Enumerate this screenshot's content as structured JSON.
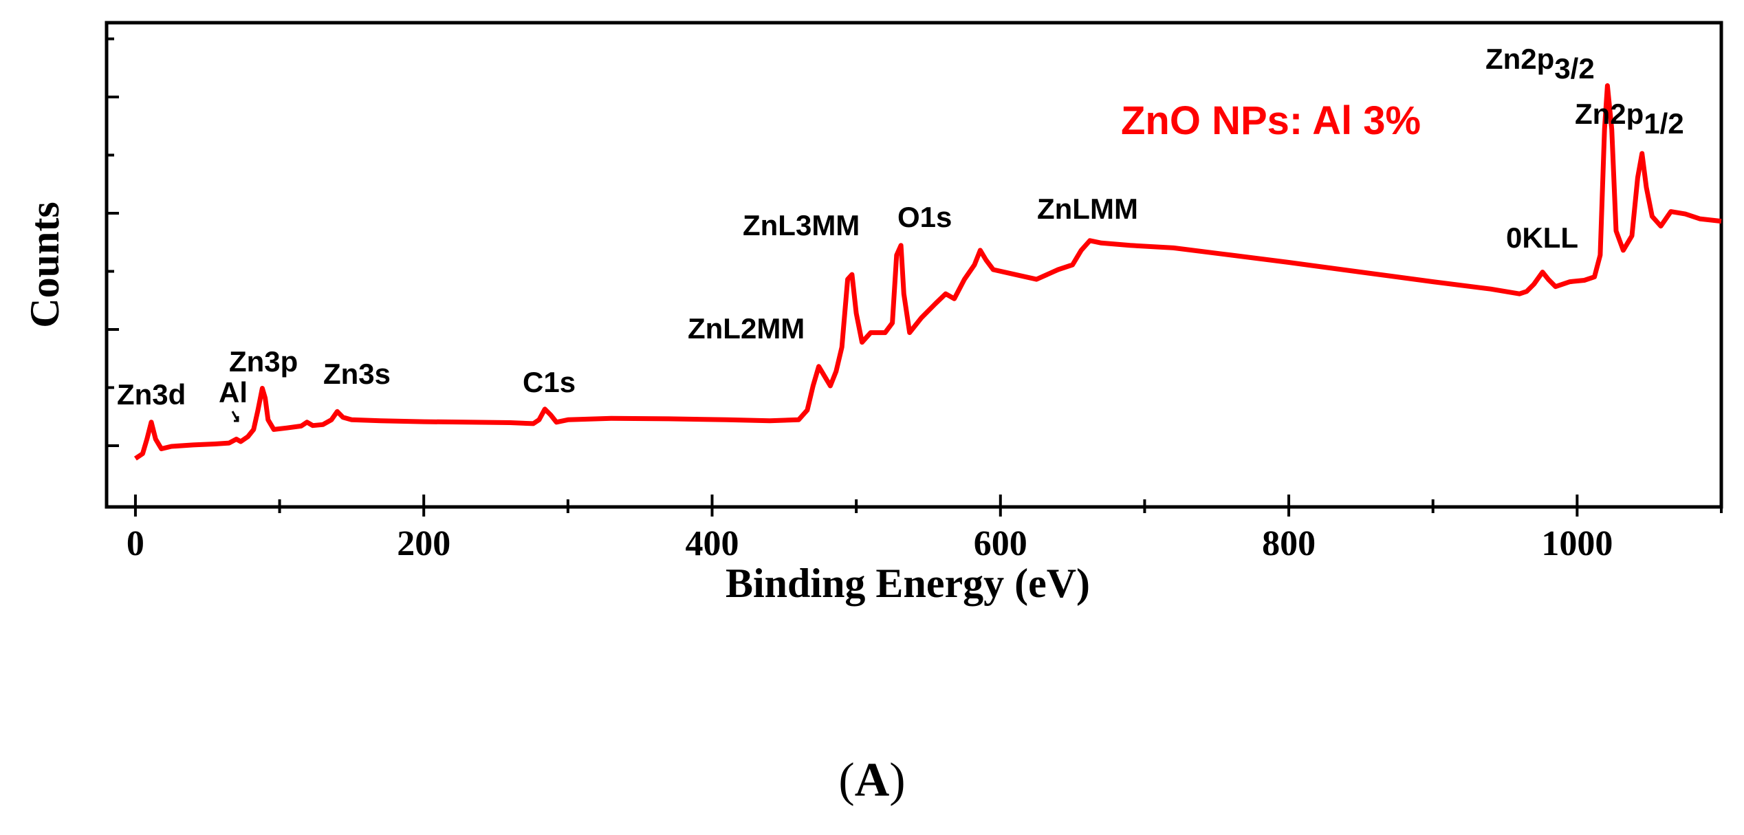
{
  "chart_data": {
    "type": "line",
    "title": "",
    "xlabel": "Binding Energy (eV)",
    "ylabel": "Counts",
    "xlim": [
      -20,
      1100
    ],
    "ylim": [
      0,
      1
    ],
    "x_ticks": [
      0,
      200,
      400,
      600,
      800,
      1000
    ],
    "x_tick_labels": [
      "0",
      "200",
      "400",
      "600",
      "800",
      "1000"
    ],
    "y_tick_labels_shown": false,
    "grid": false,
    "line_color": "#ff0000",
    "annotation_color_main": "#ff0000",
    "annotation": "ZnO NPs: Al 3%",
    "series": [
      {
        "name": "ZnO NPs: Al 3%",
        "points": [
          [
            0,
            0.1
          ],
          [
            5,
            0.11
          ],
          [
            8,
            0.14
          ],
          [
            11,
            0.175
          ],
          [
            14,
            0.14
          ],
          [
            18,
            0.12
          ],
          [
            25,
            0.125
          ],
          [
            40,
            0.128
          ],
          [
            55,
            0.13
          ],
          [
            65,
            0.132
          ],
          [
            70,
            0.14
          ],
          [
            73,
            0.135
          ],
          [
            78,
            0.145
          ],
          [
            82,
            0.16
          ],
          [
            85,
            0.2
          ],
          [
            88,
            0.245
          ],
          [
            90,
            0.225
          ],
          [
            92,
            0.18
          ],
          [
            96,
            0.16
          ],
          [
            105,
            0.163
          ],
          [
            115,
            0.167
          ],
          [
            119,
            0.175
          ],
          [
            123,
            0.168
          ],
          [
            130,
            0.17
          ],
          [
            136,
            0.18
          ],
          [
            140,
            0.197
          ],
          [
            144,
            0.185
          ],
          [
            150,
            0.18
          ],
          [
            170,
            0.178
          ],
          [
            200,
            0.176
          ],
          [
            230,
            0.175
          ],
          [
            260,
            0.174
          ],
          [
            276,
            0.172
          ],
          [
            280,
            0.18
          ],
          [
            284,
            0.202
          ],
          [
            288,
            0.19
          ],
          [
            292,
            0.175
          ],
          [
            300,
            0.18
          ],
          [
            330,
            0.183
          ],
          [
            370,
            0.182
          ],
          [
            410,
            0.18
          ],
          [
            440,
            0.178
          ],
          [
            460,
            0.18
          ],
          [
            466,
            0.2
          ],
          [
            470,
            0.25
          ],
          [
            474,
            0.29
          ],
          [
            478,
            0.27
          ],
          [
            482,
            0.25
          ],
          [
            486,
            0.28
          ],
          [
            490,
            0.33
          ],
          [
            494,
            0.47
          ],
          [
            497,
            0.48
          ],
          [
            500,
            0.4
          ],
          [
            504,
            0.34
          ],
          [
            510,
            0.36
          ],
          [
            520,
            0.36
          ],
          [
            525,
            0.38
          ],
          [
            528,
            0.52
          ],
          [
            531,
            0.54
          ],
          [
            533,
            0.44
          ],
          [
            537,
            0.36
          ],
          [
            545,
            0.39
          ],
          [
            555,
            0.42
          ],
          [
            562,
            0.44
          ],
          [
            568,
            0.43
          ],
          [
            575,
            0.47
          ],
          [
            582,
            0.5
          ],
          [
            586,
            0.53
          ],
          [
            590,
            0.51
          ],
          [
            595,
            0.49
          ],
          [
            610,
            0.48
          ],
          [
            625,
            0.47
          ],
          [
            640,
            0.49
          ],
          [
            650,
            0.5
          ],
          [
            656,
            0.53
          ],
          [
            662,
            0.55
          ],
          [
            670,
            0.545
          ],
          [
            690,
            0.54
          ],
          [
            720,
            0.535
          ],
          [
            760,
            0.52
          ],
          [
            800,
            0.505
          ],
          [
            850,
            0.485
          ],
          [
            900,
            0.465
          ],
          [
            940,
            0.45
          ],
          [
            960,
            0.44
          ],
          [
            965,
            0.445
          ],
          [
            970,
            0.46
          ],
          [
            976,
            0.485
          ],
          [
            980,
            0.47
          ],
          [
            985,
            0.455
          ],
          [
            995,
            0.465
          ],
          [
            1005,
            0.468
          ],
          [
            1012,
            0.475
          ],
          [
            1016,
            0.52
          ],
          [
            1019,
            0.78
          ],
          [
            1021,
            0.87
          ],
          [
            1024,
            0.78
          ],
          [
            1027,
            0.57
          ],
          [
            1032,
            0.53
          ],
          [
            1038,
            0.56
          ],
          [
            1042,
            0.68
          ],
          [
            1045,
            0.73
          ],
          [
            1048,
            0.66
          ],
          [
            1052,
            0.6
          ],
          [
            1058,
            0.58
          ],
          [
            1065,
            0.61
          ],
          [
            1075,
            0.605
          ],
          [
            1085,
            0.595
          ],
          [
            1100,
            0.59
          ]
        ]
      }
    ],
    "peak_labels": [
      {
        "text": "Zn3d",
        "x": 8
      },
      {
        "text": "Al",
        "x": 72
      },
      {
        "text": "Zn3p",
        "x": 88
      },
      {
        "text": "Zn3s",
        "x": 140
      },
      {
        "text": "C1s",
        "x": 284
      },
      {
        "text": "ZnL2MM",
        "x": 474
      },
      {
        "text": "ZnL3MM",
        "x": 496
      },
      {
        "text": "O1s",
        "x": 531
      },
      {
        "text": "ZnLMM",
        "x": 662
      },
      {
        "text": "0KLL",
        "x": 976
      },
      {
        "text": "Zn2p",
        "sub": "3/2",
        "x": 1021
      },
      {
        "text": "Zn2p",
        "sub": "1/2",
        "x": 1045
      }
    ]
  },
  "caption": {
    "text": "A"
  }
}
